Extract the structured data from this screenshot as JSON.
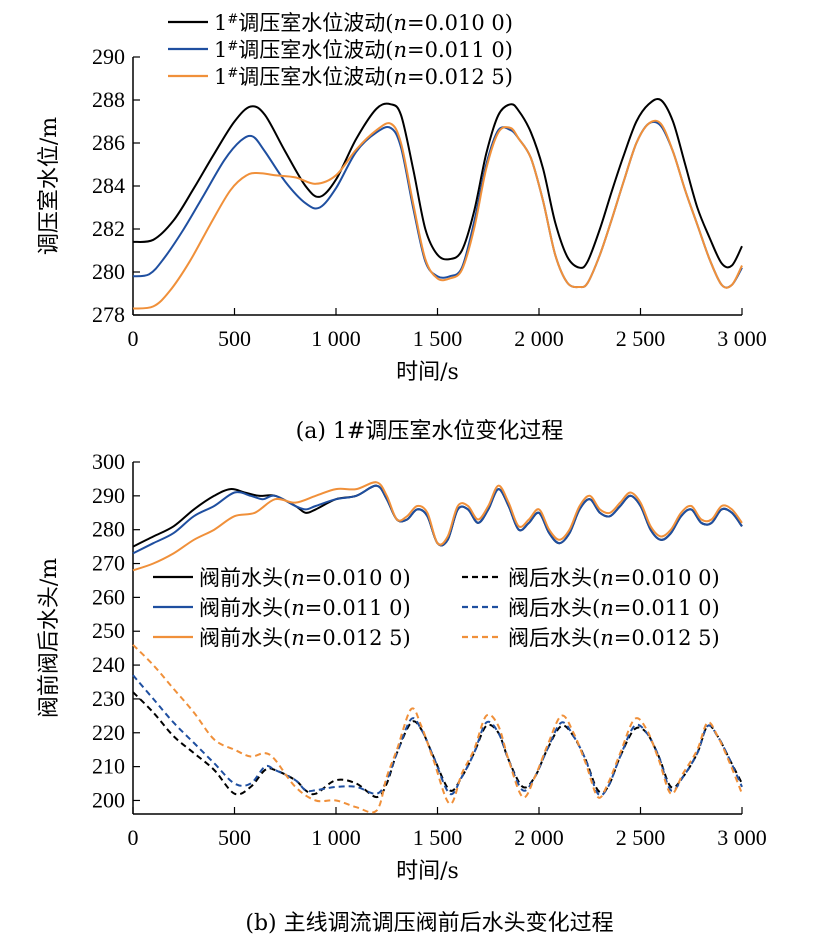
{
  "chart_data": [
    {
      "type": "line",
      "caption": "(a) 1#调压室水位变化过程",
      "xlabel": "时间/s",
      "ylabel": "调压室水位/m",
      "xlim": [
        0,
        3000
      ],
      "ylim": [
        278,
        290
      ],
      "xticks": [
        0,
        500,
        1000,
        1500,
        2000,
        2500,
        3000
      ],
      "xtick_labels": [
        "0",
        "500",
        "1 000",
        "1 500",
        "2 000",
        "2 500",
        "3 000"
      ],
      "yticks": [
        278,
        280,
        282,
        284,
        286,
        288,
        290
      ],
      "ytick_labels": [
        "278",
        "280",
        "282",
        "284",
        "286",
        "288",
        "290"
      ],
      "legend_position": "top-left",
      "series": [
        {
          "name": "1#调压室水位波动(n=0.010 0)",
          "legend_prefix": "1",
          "legend_sup": "#",
          "legend_main": "调压室水位波动(",
          "legend_n": "n",
          "legend_val": "=0.010 0)",
          "color": "#000000",
          "dash": "solid",
          "x": [
            0,
            100,
            200,
            300,
            400,
            500,
            580,
            650,
            750,
            850,
            920,
            1000,
            1100,
            1200,
            1270,
            1320,
            1380,
            1440,
            1500,
            1560,
            1620,
            1680,
            1740,
            1800,
            1860,
            1900,
            1960,
            2020,
            2080,
            2140,
            2200,
            2240,
            2300,
            2360,
            2420,
            2480,
            2540,
            2600,
            2660,
            2720,
            2780,
            2840,
            2900,
            2950,
            3000
          ],
          "y": [
            281.4,
            281.5,
            282.4,
            283.9,
            285.5,
            287.0,
            287.7,
            287.3,
            285.6,
            284.0,
            283.5,
            284.3,
            286.2,
            287.6,
            287.8,
            287.3,
            284.8,
            282.0,
            280.8,
            280.6,
            281.0,
            282.8,
            285.5,
            287.3,
            287.8,
            287.5,
            286.5,
            284.8,
            282.3,
            280.7,
            280.2,
            280.5,
            282.0,
            283.8,
            285.5,
            287.0,
            287.8,
            288.0,
            287.0,
            285.0,
            283.0,
            281.6,
            280.4,
            280.3,
            281.2
          ]
        },
        {
          "name": "1#调压室水位波动(n=0.011 0)",
          "legend_prefix": "1",
          "legend_sup": "#",
          "legend_main": "调压室水位波动(",
          "legend_n": "n",
          "legend_val": "=0.011 0)",
          "color": "#1f4fa0",
          "dash": "solid",
          "x": [
            0,
            80,
            150,
            250,
            350,
            450,
            530,
            590,
            650,
            750,
            850,
            920,
            1000,
            1100,
            1200,
            1270,
            1320,
            1380,
            1440,
            1500,
            1560,
            1620,
            1680,
            1740,
            1800,
            1860,
            1900,
            1960,
            2020,
            2080,
            2140,
            2200,
            2240,
            2300,
            2360,
            2420,
            2480,
            2540,
            2600,
            2660,
            2720,
            2780,
            2840,
            2900,
            2950,
            3000
          ],
          "y": [
            279.8,
            279.9,
            280.6,
            282.0,
            283.6,
            285.2,
            286.1,
            286.3,
            285.6,
            284.2,
            283.2,
            283.0,
            283.9,
            285.6,
            286.5,
            286.7,
            285.8,
            283.0,
            280.5,
            279.8,
            279.8,
            280.2,
            282.3,
            285.0,
            286.6,
            286.6,
            286.2,
            285.3,
            283.3,
            280.8,
            279.5,
            279.3,
            279.5,
            280.8,
            282.5,
            284.3,
            286.0,
            286.9,
            286.8,
            285.6,
            283.8,
            282.2,
            280.6,
            279.4,
            279.4,
            280.2
          ]
        },
        {
          "name": "1#调压室水位波动(n=0.012 5)",
          "legend_prefix": "1",
          "legend_sup": "#",
          "legend_main": "调压室水位波动(",
          "legend_n": "n",
          "legend_val": "=0.012 5)",
          "color": "#f0903a",
          "dash": "solid",
          "x": [
            0,
            100,
            180,
            280,
            380,
            480,
            560,
            620,
            700,
            800,
            900,
            1000,
            1100,
            1200,
            1270,
            1320,
            1380,
            1440,
            1500,
            1560,
            1620,
            1680,
            1740,
            1800,
            1860,
            1900,
            1960,
            2020,
            2080,
            2140,
            2200,
            2240,
            2300,
            2360,
            2420,
            2480,
            2540,
            2600,
            2660,
            2720,
            2780,
            2840,
            2900,
            2950,
            3000
          ],
          "y": [
            278.3,
            278.4,
            279.1,
            280.5,
            282.2,
            283.8,
            284.5,
            284.6,
            284.5,
            284.4,
            284.1,
            284.5,
            285.7,
            286.6,
            286.9,
            286.0,
            283.2,
            280.6,
            279.7,
            279.7,
            280.1,
            282.0,
            284.8,
            286.5,
            286.7,
            286.2,
            285.3,
            283.3,
            280.8,
            279.5,
            279.3,
            279.5,
            280.8,
            282.5,
            284.3,
            286.0,
            286.9,
            286.9,
            285.6,
            283.8,
            282.2,
            280.6,
            279.4,
            279.4,
            280.3
          ]
        }
      ]
    },
    {
      "type": "line",
      "caption": "(b) 主线调流调压阀前后水头变化过程",
      "xlabel": "时间/s",
      "ylabel": "阀前阀后水头/m",
      "xlim": [
        0,
        3000
      ],
      "ylim": [
        196,
        300
      ],
      "xticks": [
        0,
        500,
        1000,
        1500,
        2000,
        2500,
        3000
      ],
      "xtick_labels": [
        "0",
        "500",
        "1 000",
        "1 500",
        "2 000",
        "2 500",
        "3 000"
      ],
      "yticks": [
        200,
        210,
        220,
        230,
        240,
        250,
        260,
        270,
        280,
        290,
        300
      ],
      "ytick_labels": [
        "200",
        "210",
        "220",
        "230",
        "240",
        "250",
        "260",
        "270",
        "280",
        "290",
        "300"
      ],
      "legend_position": "center",
      "series": [
        {
          "name": "阀前水头(n=0.010 0)",
          "legend_main": "阀前水头(",
          "legend_n": "n",
          "legend_val": "=0.010 0)",
          "color": "#000000",
          "dash": "solid",
          "x": [
            0,
            100,
            200,
            300,
            400,
            480,
            550,
            620,
            700,
            800,
            850,
            900,
            1000,
            1100,
            1200,
            1250,
            1300,
            1350,
            1400,
            1450,
            1500,
            1550,
            1600,
            1650,
            1700,
            1750,
            1800,
            1850,
            1900,
            1950,
            2000,
            2050,
            2100,
            2150,
            2200,
            2250,
            2300,
            2350,
            2400,
            2450,
            2500,
            2550,
            2600,
            2650,
            2700,
            2750,
            2800,
            2850,
            2900,
            2950,
            3000
          ],
          "y": [
            275,
            278,
            281,
            286,
            290,
            292,
            291,
            290,
            290,
            287,
            285,
            286,
            289,
            290,
            293,
            289,
            283,
            283,
            286,
            284,
            276,
            277,
            286,
            286,
            282,
            286,
            292,
            287,
            280,
            282,
            285,
            279,
            276,
            279,
            286,
            289,
            285,
            284,
            287,
            290,
            287,
            280,
            277,
            279,
            284,
            286,
            282,
            282,
            286,
            285,
            281
          ]
        },
        {
          "name": "阀前水头(n=0.011 0)",
          "legend_main": "阀前水头(",
          "legend_n": "n",
          "legend_val": "=0.011 0)",
          "color": "#1f4fa0",
          "dash": "solid",
          "x": [
            0,
            100,
            200,
            300,
            400,
            500,
            580,
            640,
            700,
            800,
            850,
            900,
            1000,
            1100,
            1200,
            1250,
            1300,
            1350,
            1400,
            1450,
            1500,
            1550,
            1600,
            1650,
            1700,
            1750,
            1800,
            1850,
            1900,
            1950,
            2000,
            2050,
            2100,
            2150,
            2200,
            2250,
            2300,
            2350,
            2400,
            2450,
            2500,
            2550,
            2600,
            2650,
            2700,
            2750,
            2800,
            2850,
            2900,
            2950,
            3000
          ],
          "y": [
            273,
            276,
            279,
            284,
            287,
            291,
            290,
            289,
            290,
            287,
            286,
            287,
            289,
            290,
            293,
            289,
            283,
            283,
            286,
            284,
            276,
            277,
            286,
            286,
            282,
            286,
            292,
            287,
            280,
            282,
            285,
            279,
            276,
            279,
            286,
            289,
            285,
            284,
            287,
            290,
            287,
            280,
            277,
            279,
            284,
            286,
            282,
            282,
            286,
            285,
            281
          ]
        },
        {
          "name": "阀前水头(n=0.012 5)",
          "legend_main": "阀前水头(",
          "legend_n": "n",
          "legend_val": "=0.012 5)",
          "color": "#f0903a",
          "dash": "solid",
          "x": [
            0,
            100,
            200,
            300,
            400,
            500,
            600,
            700,
            800,
            900,
            1000,
            1100,
            1200,
            1250,
            1300,
            1350,
            1400,
            1450,
            1500,
            1550,
            1600,
            1650,
            1700,
            1750,
            1800,
            1850,
            1900,
            1950,
            2000,
            2050,
            2100,
            2150,
            2200,
            2250,
            2300,
            2350,
            2400,
            2450,
            2500,
            2550,
            2600,
            2650,
            2700,
            2750,
            2800,
            2850,
            2900,
            2950,
            3000
          ],
          "y": [
            268,
            270,
            273,
            277,
            280,
            284,
            285,
            289,
            288,
            290,
            292,
            292,
            294,
            290,
            283,
            284,
            287,
            285,
            276,
            278,
            287,
            287,
            283,
            287,
            293,
            288,
            281,
            283,
            286,
            280,
            277,
            280,
            287,
            290,
            286,
            285,
            288,
            291,
            288,
            281,
            278,
            280,
            285,
            287,
            283,
            283,
            287,
            286,
            282
          ]
        },
        {
          "name": "阀后水头(n=0.010 0)",
          "legend_main": "阀后水头(",
          "legend_n": "n",
          "legend_val": "=0.010 0)",
          "color": "#000000",
          "dash": "dashed",
          "x": [
            0,
            100,
            200,
            300,
            400,
            500,
            580,
            650,
            700,
            800,
            850,
            900,
            1000,
            1100,
            1200,
            1250,
            1300,
            1370,
            1420,
            1480,
            1560,
            1620,
            1680,
            1740,
            1800,
            1850,
            1920,
            1980,
            2040,
            2110,
            2170,
            2230,
            2290,
            2340,
            2400,
            2470,
            2530,
            2590,
            2650,
            2710,
            2780,
            2830,
            2880,
            2940,
            3000
          ],
          "y": [
            232,
            226,
            219,
            214,
            209,
            202,
            204,
            209,
            209,
            206,
            203,
            202,
            206,
            205,
            201,
            205,
            214,
            223,
            221,
            213,
            203,
            207,
            214,
            222,
            220,
            212,
            204,
            207,
            215,
            222,
            219,
            212,
            203,
            204,
            213,
            221,
            220,
            213,
            204,
            207,
            214,
            222,
            219,
            212,
            205
          ]
        },
        {
          "name": "阀后水头(n=0.011 0)",
          "legend_main": "阀后水头(",
          "legend_n": "n",
          "legend_val": "=0.011 0)",
          "color": "#1f4fa0",
          "dash": "dashed",
          "x": [
            0,
            100,
            200,
            300,
            400,
            500,
            580,
            650,
            700,
            800,
            850,
            900,
            1000,
            1100,
            1200,
            1250,
            1300,
            1370,
            1420,
            1480,
            1560,
            1620,
            1680,
            1740,
            1800,
            1850,
            1920,
            1980,
            2040,
            2110,
            2170,
            2230,
            2290,
            2340,
            2400,
            2470,
            2530,
            2590,
            2650,
            2710,
            2780,
            2830,
            2880,
            2940,
            3000
          ],
          "y": [
            237,
            230,
            223,
            217,
            211,
            205,
            205,
            210,
            209,
            206,
            203,
            203,
            204,
            204,
            202,
            206,
            214,
            224,
            221,
            213,
            202,
            207,
            214,
            223,
            220,
            212,
            203,
            207,
            215,
            223,
            219,
            212,
            202,
            204,
            213,
            222,
            220,
            213,
            203,
            207,
            214,
            222,
            219,
            212,
            204
          ]
        },
        {
          "name": "阀后水头(n=0.012 5)",
          "legend_main": "阀后水头(",
          "legend_n": "n",
          "legend_val": "=0.012 5)",
          "color": "#f0903a",
          "dash": "dashed",
          "x": [
            0,
            100,
            200,
            300,
            400,
            500,
            580,
            650,
            700,
            800,
            900,
            1000,
            1100,
            1200,
            1250,
            1300,
            1370,
            1420,
            1480,
            1560,
            1620,
            1680,
            1740,
            1800,
            1850,
            1920,
            1980,
            2040,
            2110,
            2170,
            2230,
            2290,
            2340,
            2400,
            2470,
            2530,
            2590,
            2650,
            2710,
            2780,
            2830,
            2880,
            2940,
            3000
          ],
          "y": [
            246,
            240,
            233,
            226,
            218,
            215,
            213,
            214,
            212,
            204,
            200,
            200,
            198,
            197,
            207,
            215,
            227,
            222,
            212,
            199,
            208,
            215,
            225,
            222,
            212,
            201,
            207,
            216,
            225,
            220,
            211,
            201,
            205,
            214,
            224,
            221,
            212,
            202,
            208,
            215,
            223,
            219,
            211,
            202
          ]
        }
      ]
    }
  ]
}
